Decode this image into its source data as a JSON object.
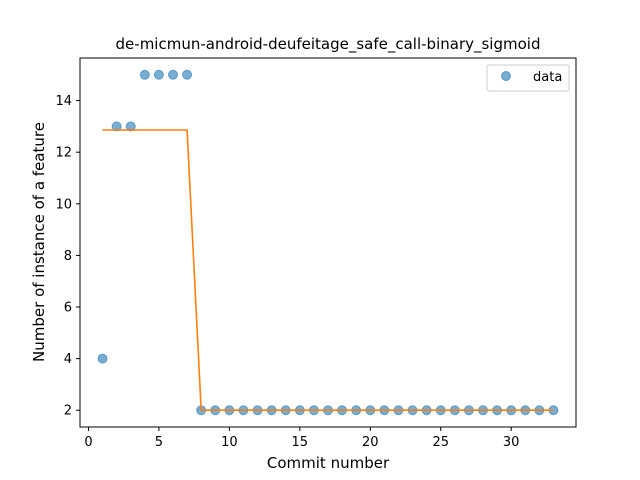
{
  "chart_data": {
    "type": "scatter",
    "title": "de-micmun-android-deufeitage_safe_call-binary_sigmoid",
    "xlabel": "Commit number",
    "ylabel": "Number of instance of a feature",
    "xlim": [
      -0.6,
      34.6
    ],
    "ylim": [
      1.35,
      15.65
    ],
    "xticks": [
      0,
      5,
      10,
      15,
      20,
      25,
      30
    ],
    "yticks": [
      2,
      4,
      6,
      8,
      10,
      12,
      14
    ],
    "legend": {
      "position": "top-right",
      "entries": [
        "data"
      ]
    },
    "grid": false,
    "series": [
      {
        "name": "data",
        "kind": "scatter",
        "color": "#1f77b4",
        "x": [
          1,
          2,
          3,
          4,
          5,
          6,
          7,
          8,
          9,
          10,
          11,
          12,
          13,
          14,
          15,
          16,
          17,
          18,
          19,
          20,
          21,
          22,
          23,
          24,
          25,
          26,
          27,
          28,
          29,
          30,
          31,
          32,
          33
        ],
        "y": [
          4,
          13,
          13,
          15,
          15,
          15,
          15,
          2,
          2,
          2,
          2,
          2,
          2,
          2,
          2,
          2,
          2,
          2,
          2,
          2,
          2,
          2,
          2,
          2,
          2,
          2,
          2,
          2,
          2,
          2,
          2,
          2,
          2
        ]
      },
      {
        "kind": "line",
        "color": "#ff7f0e",
        "x": [
          1,
          2,
          3,
          4,
          5,
          6,
          7,
          8,
          9,
          10,
          11,
          12,
          13,
          14,
          15,
          16,
          17,
          18,
          19,
          20,
          21,
          22,
          23,
          24,
          25,
          26,
          27,
          28,
          29,
          30,
          31,
          32,
          33
        ],
        "y": [
          12.86,
          12.86,
          12.86,
          12.86,
          12.86,
          12.86,
          12.86,
          2.0,
          2.0,
          2.0,
          2.0,
          2.0,
          2.0,
          2.0,
          2.0,
          2.0,
          2.0,
          2.0,
          2.0,
          2.0,
          2.0,
          2.0,
          2.0,
          2.0,
          2.0,
          2.0,
          2.0,
          2.0,
          2.0,
          2.0,
          2.0,
          2.0,
          2.0
        ]
      }
    ]
  }
}
